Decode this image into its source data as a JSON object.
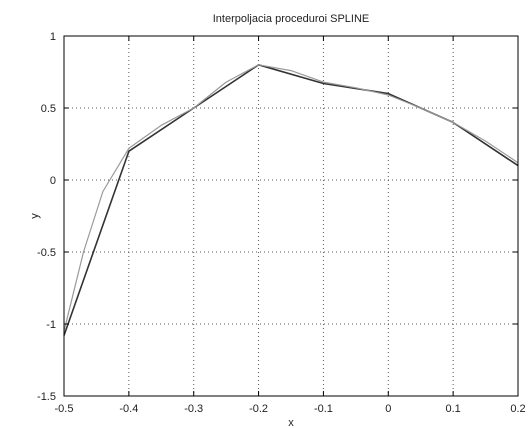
{
  "chart_data": {
    "type": "line",
    "title": "Interpoljacia proceduroi SPLINE",
    "xlabel": "x",
    "ylabel": "y",
    "xlim": [
      -0.5,
      0.2
    ],
    "ylim": [
      -1.5,
      1
    ],
    "grid": true,
    "xticks": [
      -0.5,
      -0.4,
      -0.3,
      -0.2,
      -0.1,
      0,
      0.1,
      0.2
    ],
    "xtick_labels": [
      "-0.5",
      "-0.4",
      "-0.3",
      "-0.2",
      "-0.1",
      "0",
      "0.1",
      "0.2"
    ],
    "yticks": [
      -1.5,
      -1,
      -0.5,
      0,
      0.5,
      1
    ],
    "ytick_labels": [
      "-1.5",
      "-1",
      "-0.5",
      "0",
      "0.5",
      "1"
    ],
    "series": [
      {
        "style": "solid-dark",
        "color": "#333333",
        "x": [
          -0.5,
          -0.4,
          -0.3,
          -0.2,
          -0.1,
          0.0,
          0.1,
          0.2
        ],
        "y": [
          -1.08,
          0.2,
          0.5,
          0.8,
          0.67,
          0.6,
          0.4,
          0.1
        ]
      },
      {
        "style": "smooth-light",
        "color": "#999999",
        "x": [
          -0.5,
          -0.47,
          -0.44,
          -0.4,
          -0.35,
          -0.3,
          -0.25,
          -0.2,
          -0.15,
          -0.1,
          -0.05,
          0.0,
          0.05,
          0.1,
          0.15,
          0.2
        ],
        "y": [
          -1.05,
          -0.5,
          -0.08,
          0.22,
          0.38,
          0.5,
          0.68,
          0.8,
          0.76,
          0.68,
          0.64,
          0.59,
          0.5,
          0.4,
          0.27,
          0.12
        ]
      }
    ]
  }
}
